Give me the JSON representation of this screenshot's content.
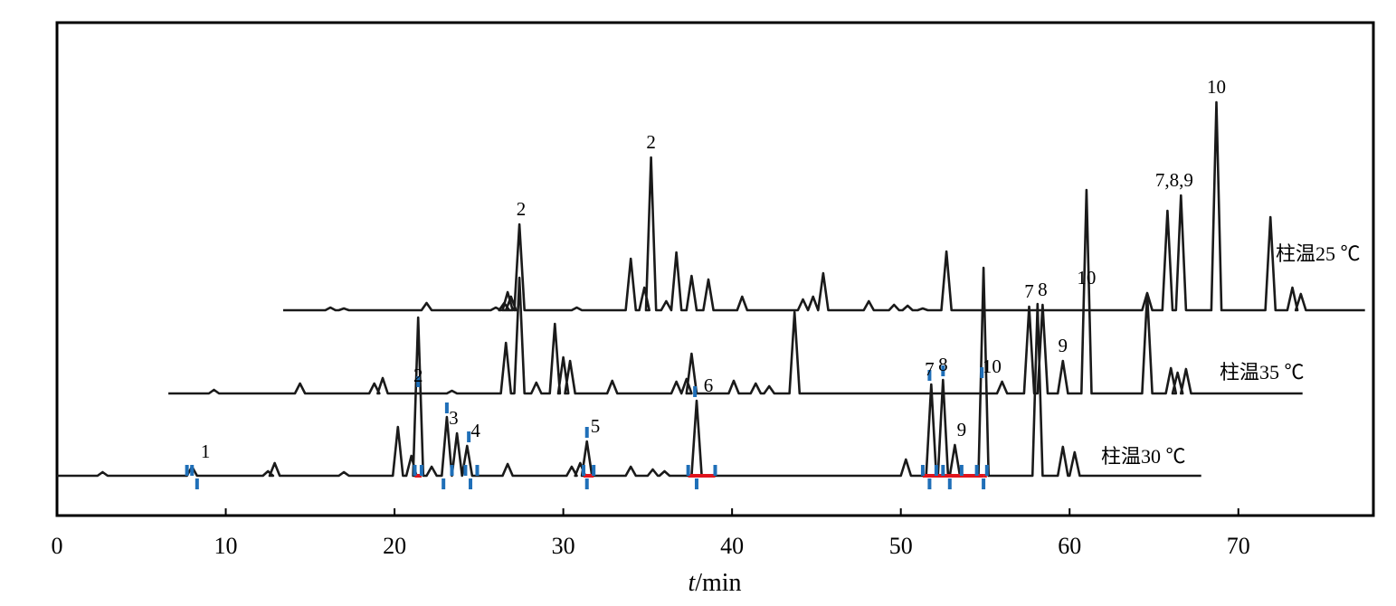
{
  "chart_data": {
    "type": "line",
    "xlabel_italic": "t",
    "xlabel_rest": "/min",
    "xlim": [
      0,
      78
    ],
    "x_ticks": [
      0,
      10,
      20,
      30,
      40,
      50,
      60,
      70
    ],
    "series": [
      {
        "name": "柱温25 ℃",
        "x_start": 13.4,
        "x_end": 77.5,
        "points": [
          [
            16.2,
            0.03
          ],
          [
            17.0,
            0.02
          ],
          [
            21.9,
            0.08
          ],
          [
            26.0,
            0.03
          ],
          [
            26.5,
            0.08
          ],
          [
            26.7,
            0.2
          ],
          [
            26.9,
            0.15
          ],
          [
            27.4,
            0.95
          ],
          [
            30.8,
            0.03
          ],
          [
            34.0,
            0.57
          ],
          [
            34.8,
            0.25
          ],
          [
            35.2,
            1.69
          ],
          [
            36.1,
            0.1
          ],
          [
            36.7,
            0.64
          ],
          [
            37.6,
            0.38
          ],
          [
            38.6,
            0.34
          ],
          [
            40.6,
            0.15
          ],
          [
            44.2,
            0.12
          ],
          [
            44.8,
            0.15
          ],
          [
            45.4,
            0.41
          ],
          [
            48.1,
            0.1
          ],
          [
            49.6,
            0.06
          ],
          [
            50.4,
            0.05
          ],
          [
            51.3,
            0.02
          ],
          [
            52.7,
            0.65
          ],
          [
            64.6,
            0.19
          ],
          [
            65.8,
            1.1
          ],
          [
            66.6,
            1.27
          ],
          [
            68.7,
            2.3
          ],
          [
            71.9,
            1.03
          ],
          [
            73.2,
            0.25
          ],
          [
            73.7,
            0.18
          ]
        ]
      },
      {
        "name": "柱温35 ℃",
        "x_start": 6.6,
        "x_end": 73.8,
        "points": [
          [
            9.3,
            0.04
          ],
          [
            14.4,
            0.11
          ],
          [
            18.8,
            0.11
          ],
          [
            19.3,
            0.17
          ],
          [
            23.4,
            0.03
          ],
          [
            26.6,
            0.56
          ],
          [
            27.4,
            1.28
          ],
          [
            28.4,
            0.12
          ],
          [
            29.5,
            0.77
          ],
          [
            30.0,
            0.4
          ],
          [
            30.4,
            0.36
          ],
          [
            32.9,
            0.14
          ],
          [
            36.7,
            0.13
          ],
          [
            37.3,
            0.16
          ],
          [
            37.6,
            0.44
          ],
          [
            40.1,
            0.14
          ],
          [
            41.4,
            0.11
          ],
          [
            42.2,
            0.08
          ],
          [
            43.7,
            0.9
          ],
          [
            56.0,
            0.13
          ],
          [
            57.6,
            0.96
          ],
          [
            58.4,
            0.98
          ],
          [
            59.6,
            0.36
          ],
          [
            61.0,
            2.25
          ],
          [
            64.6,
            1.1
          ],
          [
            66.0,
            0.28
          ],
          [
            66.4,
            0.23
          ],
          [
            66.9,
            0.27
          ]
        ]
      },
      {
        "name": "柱温30 ℃",
        "x_start": 0,
        "x_end": 67.8,
        "points": [
          [
            2.7,
            0.04
          ],
          [
            8.0,
            0.1
          ],
          [
            12.5,
            0.05
          ],
          [
            12.9,
            0.14
          ],
          [
            17.0,
            0.04
          ],
          [
            20.2,
            0.54
          ],
          [
            21.0,
            0.22
          ],
          [
            21.4,
            1.75
          ],
          [
            22.2,
            0.1
          ],
          [
            23.1,
            0.65
          ],
          [
            23.7,
            0.47
          ],
          [
            24.3,
            0.33
          ],
          [
            26.7,
            0.13
          ],
          [
            30.5,
            0.1
          ],
          [
            31.0,
            0.14
          ],
          [
            31.4,
            0.38
          ],
          [
            34.0,
            0.1
          ],
          [
            35.3,
            0.07
          ],
          [
            36.0,
            0.05
          ],
          [
            37.9,
            0.83
          ],
          [
            50.3,
            0.18
          ],
          [
            51.8,
            1.01
          ],
          [
            52.5,
            1.06
          ],
          [
            53.2,
            0.34
          ],
          [
            54.9,
            2.3
          ],
          [
            58.1,
            1.9
          ],
          [
            59.6,
            0.32
          ],
          [
            60.3,
            0.26
          ]
        ]
      }
    ],
    "peak_labels": [
      {
        "series": 0,
        "x": 27.5,
        "text": "2"
      },
      {
        "series": 0,
        "x": 35.2,
        "text": "2"
      },
      {
        "series": 0,
        "x": 61.0,
        "text": "10"
      },
      {
        "series": 0,
        "x": 66.2,
        "text": "7,8,9"
      },
      {
        "series": 0,
        "x": 68.7,
        "text": "10"
      },
      {
        "series": 1,
        "x": 21.4,
        "text": "2"
      },
      {
        "series": 1,
        "x": 55.4,
        "text": "10"
      },
      {
        "series": 1,
        "x": 57.6,
        "text": "7"
      },
      {
        "series": 1,
        "x": 58.4,
        "text": "8"
      },
      {
        "series": 1,
        "x": 59.6,
        "text": "9"
      },
      {
        "series": 2,
        "x": 8.8,
        "text": "1"
      },
      {
        "series": 2,
        "x": 23.5,
        "text": "3"
      },
      {
        "series": 2,
        "x": 24.8,
        "text": "4"
      },
      {
        "series": 2,
        "x": 31.9,
        "text": "5"
      },
      {
        "series": 2,
        "x": 38.6,
        "text": "6"
      },
      {
        "series": 2,
        "x": 51.7,
        "text": "7"
      },
      {
        "series": 2,
        "x": 52.5,
        "text": "8"
      },
      {
        "series": 2,
        "x": 53.6,
        "text": "9"
      }
    ],
    "integration_marks": [
      7.7,
      8.0,
      8.3,
      21.2,
      21.6,
      22.9,
      23.4,
      24.2,
      24.5,
      24.9,
      31.2,
      31.4,
      31.8,
      37.4,
      37.9,
      39.0,
      51.3,
      51.7,
      52.1,
      52.5,
      52.9,
      53.6,
      54.5,
      54.9,
      55.1
    ],
    "baseline_segments": [
      [
        21.2,
        21.6
      ],
      [
        31.2,
        31.8
      ],
      [
        37.4,
        39.0
      ],
      [
        51.3,
        54.9
      ],
      [
        54.9,
        55.1
      ]
    ],
    "marker_color": "#1f6fb8",
    "baseline_color": "#e0141c",
    "line_color": "#1a1a1a"
  }
}
